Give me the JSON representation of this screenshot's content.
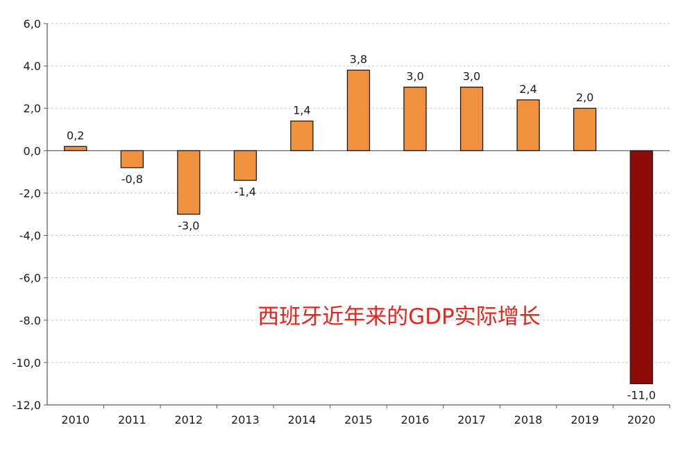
{
  "chart_data": {
    "type": "bar",
    "title": "西班牙近年来的GDP实际增长",
    "categories": [
      "2010",
      "2011",
      "2012",
      "2013",
      "2014",
      "2015",
      "2016",
      "2017",
      "2018",
      "2019",
      "2020"
    ],
    "values": [
      0.2,
      -0.8,
      -3.0,
      -1.4,
      1.4,
      3.8,
      3.0,
      3.0,
      2.4,
      2.0,
      -11.0
    ],
    "value_labels": [
      "0,2",
      "-0,8",
      "-3,0",
      "-1,4",
      "1,4",
      "3,8",
      "3,0",
      "3,0",
      "2,4",
      "2,0",
      "-11,0"
    ],
    "y_ticks": [
      6,
      4,
      2,
      0,
      -2,
      -4,
      -6,
      -8,
      -10,
      -12
    ],
    "y_tick_labels": [
      "6,0",
      "4.0",
      "2,0",
      "0,0",
      "-2,0",
      "-4,0",
      "-6,0",
      "-8.0",
      "-10,0",
      "-12,0"
    ],
    "ylim": [
      -12,
      6
    ],
    "xlabel": "",
    "ylabel": "",
    "grid": true,
    "legend": false,
    "colors": {
      "bar": "#f0913e",
      "bar_highlight": "#8e0b08",
      "bar_stroke": "#1a1a1a",
      "title": "#e8231a",
      "grid": "#c8c8c8",
      "axis": "#555555",
      "text": "#1a1a1a"
    }
  }
}
